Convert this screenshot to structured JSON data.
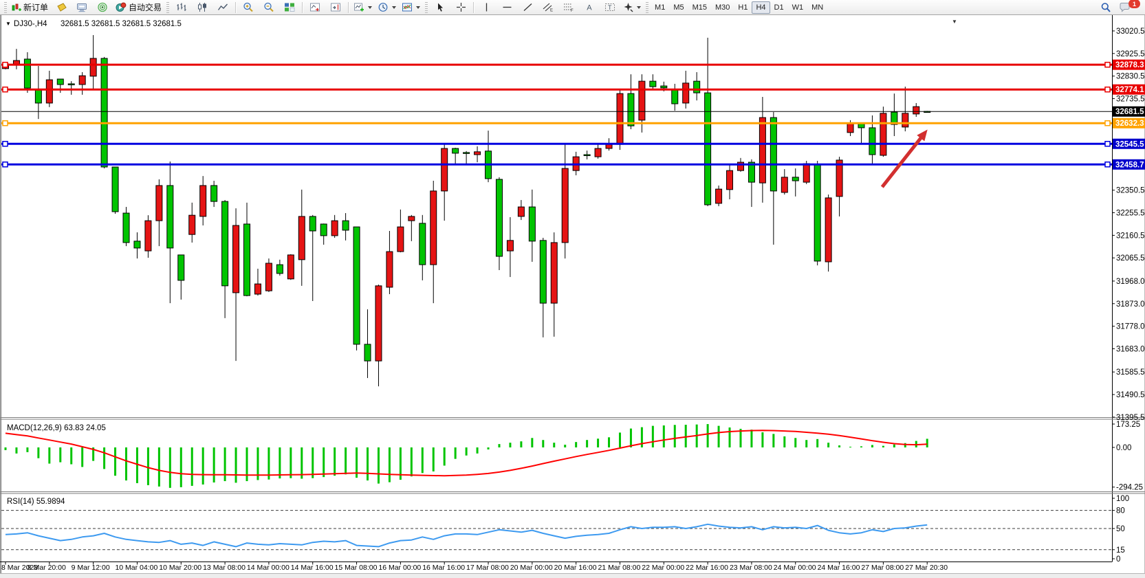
{
  "toolbar": {
    "new_order_label": "新订单",
    "autotrading_label": "自动交易",
    "timeframes": [
      "M1",
      "M5",
      "M15",
      "M30",
      "H1",
      "H4",
      "D1",
      "W1",
      "MN"
    ],
    "active_timeframe": "H4",
    "notification_count": "1"
  },
  "chart": {
    "title": "DJ30-,H4",
    "ohlc_line": "32681.5 32681.5 32681.5 32681.5",
    "current_price": "32681.5"
  },
  "macd_panel": {
    "label": "MACD(12,26,9) 63.83 24.05",
    "tick_labels": [
      "173.25",
      "0.00",
      "-294.25"
    ]
  },
  "rsi_panel": {
    "label": "RSI(14) 55.9894",
    "tick_labels": [
      "100",
      "80",
      "50",
      "15",
      "0"
    ]
  },
  "chart_data": {
    "type": "candlestick",
    "symbol": "DJ30-",
    "timeframe": "H4",
    "price_axis": {
      "ticks": [
        33020.5,
        32925.5,
        32830.5,
        32735.5,
        32350.5,
        32255.5,
        32160.5,
        32065.5,
        31968.0,
        31873.0,
        31778.0,
        31683.0,
        31585.5,
        31490.5,
        31395.5
      ],
      "tick_labels": [
        "33020.5",
        "32925.5",
        "32830.5",
        "32735.5",
        "32350.5",
        "32255.5",
        "32160.5",
        "32065.5",
        "31968.0",
        "31873.0",
        "31778.0",
        "31683.0",
        "31585.5",
        "31490.5",
        "31395.5"
      ]
    },
    "x_labels": [
      "8 Mar 2023",
      "8 Mar 20:00",
      "9 Mar 12:00",
      "10 Mar 04:00",
      "10 Mar 20:00",
      "13 Mar 08:00",
      "14 Mar 00:00",
      "14 Mar 16:00",
      "15 Mar 08:00",
      "16 Mar 00:00",
      "16 Mar 16:00",
      "17 Mar 08:00",
      "20 Mar 00:00",
      "20 Mar 16:00",
      "21 Mar 08:00",
      "22 Mar 00:00",
      "22 Mar 16:00",
      "23 Mar 08:00",
      "24 Mar 00:00",
      "24 Mar 16:00",
      "27 Mar 08:00",
      "27 Mar 20:30"
    ],
    "levels": [
      {
        "label": "32878.3",
        "price": 32878.3,
        "color": "#e80000",
        "tag_bg": "#e80000",
        "handle": true
      },
      {
        "label": "32774.1",
        "price": 32774.1,
        "color": "#e80000",
        "tag_bg": "#e80000",
        "handle": true
      },
      {
        "label": "32681.5",
        "price": 32681.5,
        "color": "#000000",
        "tag_bg": "#000000",
        "handle": false
      },
      {
        "label": "32632.3",
        "price": 32632.3,
        "color": "#ffa200",
        "tag_bg": "#ffa200",
        "handle": true
      },
      {
        "label": "32545.5",
        "price": 32545.5,
        "color": "#0000e0",
        "tag_bg": "#0000cc",
        "handle": true
      },
      {
        "label": "32458.7",
        "price": 32458.7,
        "color": "#0000e0",
        "tag_bg": "#0000cc",
        "handle": true
      }
    ],
    "candles": [
      [
        32882,
        32885,
        32859,
        32862
      ],
      [
        32896,
        32945,
        32859,
        32876
      ],
      [
        32780,
        32931,
        32760,
        32902
      ],
      [
        32717,
        32873,
        32650,
        32775
      ],
      [
        32815,
        32853,
        32700,
        32717
      ],
      [
        32795,
        32818,
        32760,
        32818
      ],
      [
        32796,
        32809,
        32752,
        32798
      ],
      [
        32832,
        32847,
        32752,
        32795
      ],
      [
        32905,
        33003,
        32772,
        32830
      ],
      [
        32448,
        32911,
        32442,
        32905
      ],
      [
        32260,
        32448,
        32251,
        32448
      ],
      [
        32130,
        32280,
        32115,
        32254
      ],
      [
        32107,
        32173,
        32063,
        32136
      ],
      [
        32222,
        32245,
        32066,
        32095
      ],
      [
        32370,
        32396,
        32115,
        32222
      ],
      [
        32107,
        32471,
        31875,
        32370
      ],
      [
        31971,
        32078,
        31890,
        32078
      ],
      [
        32245,
        32298,
        32130,
        32164
      ],
      [
        32370,
        32410,
        32202,
        32240
      ],
      [
        32303,
        32390,
        32280,
        32370
      ],
      [
        31948,
        32309,
        31812,
        32303
      ],
      [
        32202,
        32274,
        31632,
        31919
      ],
      [
        31907,
        32298,
        31904,
        32208
      ],
      [
        31956,
        32020,
        31907,
        31913
      ],
      [
        32043,
        32063,
        31922,
        31927
      ],
      [
        32000,
        32058,
        31991,
        32037
      ],
      [
        32078,
        32081,
        31973,
        31977
      ],
      [
        32240,
        32353,
        31948,
        32058
      ],
      [
        32179,
        32246,
        31884,
        32240
      ],
      [
        32159,
        32210,
        32121,
        32208
      ],
      [
        32222,
        32246,
        32150,
        32159
      ],
      [
        32182,
        32254,
        32139,
        32222
      ],
      [
        31702,
        32196,
        31676,
        32196
      ],
      [
        31632,
        31849,
        31560,
        31702
      ],
      [
        31948,
        31953,
        31525,
        31632
      ],
      [
        32092,
        32179,
        31913,
        31942
      ],
      [
        32196,
        32269,
        32089,
        32092
      ],
      [
        32240,
        32246,
        32136,
        32222
      ],
      [
        32037,
        32246,
        31971,
        32211
      ],
      [
        32347,
        32390,
        31875,
        32037
      ],
      [
        32526,
        32549,
        32222,
        32347
      ],
      [
        32506,
        32529,
        32462,
        32526
      ],
      [
        32506,
        32515,
        32462,
        32509
      ],
      [
        32512,
        32535,
        32468,
        32500
      ],
      [
        32399,
        32601,
        32384,
        32515
      ],
      [
        32072,
        32405,
        32014,
        32396
      ],
      [
        32139,
        32237,
        31985,
        32095
      ],
      [
        32280,
        32309,
        32225,
        32240
      ],
      [
        32136,
        32353,
        32049,
        32280
      ],
      [
        31875,
        32150,
        31731,
        32139
      ],
      [
        32130,
        32173,
        31734,
        31875
      ],
      [
        32442,
        32543,
        32063,
        32130
      ],
      [
        32491,
        32512,
        32413,
        32433
      ],
      [
        32497,
        32517,
        32480,
        32500
      ],
      [
        32526,
        32549,
        32483,
        32491
      ],
      [
        32543,
        32569,
        32517,
        32526
      ],
      [
        32757,
        32772,
        32520,
        32543
      ],
      [
        32621,
        32838,
        32607,
        32757
      ],
      [
        32809,
        32838,
        32593,
        32645
      ],
      [
        32786,
        32838,
        32772,
        32809
      ],
      [
        32781,
        32807,
        32766,
        32789
      ],
      [
        32714,
        32798,
        32685,
        32775
      ],
      [
        32801,
        32853,
        32694,
        32717
      ],
      [
        32760,
        32847,
        32728,
        32809
      ],
      [
        32289,
        32992,
        32283,
        32760
      ],
      [
        32355,
        32370,
        32283,
        32295
      ],
      [
        32433,
        32457,
        32312,
        32353
      ],
      [
        32468,
        32486,
        32428,
        32433
      ],
      [
        32384,
        32480,
        32280,
        32468
      ],
      [
        32656,
        32743,
        32298,
        32381
      ],
      [
        32347,
        32679,
        32121,
        32656
      ],
      [
        32405,
        32439,
        32332,
        32341
      ],
      [
        32390,
        32442,
        32324,
        32405
      ],
      [
        32462,
        32474,
        32376,
        32384
      ],
      [
        32052,
        32474,
        32034,
        32460
      ],
      [
        32318,
        32332,
        32008,
        32049
      ],
      [
        32477,
        32491,
        32240,
        32324
      ],
      [
        32630,
        32645,
        32578,
        32593
      ],
      [
        32613,
        32636,
        32543,
        32630
      ],
      [
        32500,
        32665,
        32457,
        32613
      ],
      [
        32674,
        32702,
        32491,
        32497
      ],
      [
        32627,
        32757,
        32578,
        32679
      ],
      [
        32674,
        32786,
        32598,
        32616
      ],
      [
        32702,
        32717,
        32659,
        32671
      ],
      [
        32679,
        32684,
        32677,
        32682
      ]
    ],
    "indicators": {
      "macd": {
        "axis_ticks": [
          173.25,
          0.0,
          -294.25
        ],
        "histogram": [
          -20,
          -45,
          -35,
          -80,
          -120,
          -110,
          -125,
          -145,
          -100,
          -160,
          -210,
          -245,
          -265,
          -280,
          -290,
          -300,
          -295,
          -285,
          -275,
          -260,
          -250,
          -262,
          -250,
          -242,
          -238,
          -230,
          -228,
          -232,
          -228,
          -220,
          -210,
          -200,
          -225,
          -245,
          -268,
          -258,
          -240,
          -215,
          -190,
          -178,
          -135,
          -85,
          -60,
          -45,
          -15,
          25,
          35,
          45,
          70,
          55,
          35,
          20,
          40,
          55,
          65,
          75,
          110,
          140,
          150,
          160,
          163,
          167,
          168,
          170,
          173,
          160,
          148,
          138,
          132,
          112,
          100,
          82,
          70,
          55,
          62,
          35,
          15,
          5,
          8,
          18,
          12,
          22,
          32,
          48,
          64
        ],
        "signal": [
          105,
          95,
          85,
          70,
          55,
          40,
          25,
          5,
          -15,
          -40,
          -70,
          -100,
          -125,
          -150,
          -170,
          -185,
          -195,
          -200,
          -202,
          -203,
          -203,
          -204,
          -205,
          -205,
          -205,
          -204,
          -203,
          -202,
          -200,
          -198,
          -195,
          -192,
          -190,
          -192,
          -196,
          -200,
          -203,
          -205,
          -207,
          -209,
          -210,
          -208,
          -205,
          -200,
          -193,
          -183,
          -170,
          -155,
          -138,
          -120,
          -102,
          -85,
          -68,
          -52,
          -37,
          -22,
          -5,
          12,
          28,
          42,
          55,
          67,
          78,
          88,
          100,
          110,
          117,
          122,
          125,
          126,
          125,
          122,
          118,
          112,
          106,
          98,
          88,
          76,
          63,
          50,
          38,
          28,
          22,
          20,
          24
        ]
      },
      "rsi": {
        "axis_ticks": [
          100,
          80,
          50,
          15,
          0
        ],
        "dashed_levels": [
          80,
          50,
          15
        ],
        "values": [
          40,
          41,
          43,
          38,
          34,
          30,
          32,
          36,
          38,
          42,
          36,
          32,
          30,
          28,
          27,
          30,
          24,
          26,
          22,
          28,
          24,
          20,
          26,
          24,
          23,
          25,
          24,
          23,
          27,
          29,
          28,
          30,
          22,
          21,
          20,
          26,
          30,
          31,
          36,
          32,
          38,
          41,
          41,
          40,
          44,
          48,
          46,
          44,
          47,
          42,
          38,
          34,
          37,
          39,
          40,
          42,
          48,
          53,
          50,
          52,
          52,
          53,
          50,
          53,
          57,
          54,
          52,
          51,
          53,
          48,
          53,
          51,
          52,
          50,
          55,
          47,
          43,
          41,
          43,
          48,
          45,
          50,
          51,
          54,
          56
        ]
      }
    },
    "annotation_arrow": {
      "from_bar": 79.9,
      "from_price": 32364,
      "to_bar": 83.8,
      "to_price": 32592,
      "color": "#d22f2f"
    },
    "colors": {
      "up": "#00c400",
      "down": "#e51414",
      "wick": "#000000",
      "macd_hist": "#00c400",
      "macd_signal": "#ff0000",
      "rsi_line": "#3d9af0"
    }
  }
}
